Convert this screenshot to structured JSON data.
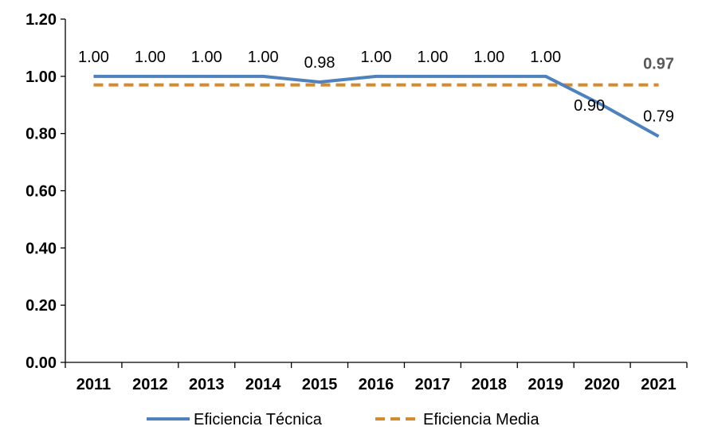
{
  "chart_data": {
    "type": "line",
    "categories": [
      "2011",
      "2012",
      "2013",
      "2014",
      "2015",
      "2016",
      "2017",
      "2018",
      "2019",
      "2020",
      "2021"
    ],
    "series": [
      {
        "name": "Eficiencia Técnica",
        "values": [
          1.0,
          1.0,
          1.0,
          1.0,
          0.98,
          1.0,
          1.0,
          1.0,
          1.0,
          0.9,
          0.79
        ],
        "labels": [
          "1.00",
          "1.00",
          "1.00",
          "1.00",
          "0.98",
          "1.00",
          "1.00",
          "1.00",
          "1.00",
          "0.90",
          "0.79"
        ],
        "color": "#4F81BD",
        "style": "solid"
      },
      {
        "name": "Eficiencia Media",
        "values": [
          0.97,
          0.97,
          0.97,
          0.97,
          0.97,
          0.97,
          0.97,
          0.97,
          0.97,
          0.97,
          0.97
        ],
        "end_label": "0.97",
        "color": "#D48A2E",
        "style": "dashed"
      }
    ],
    "yticks": [
      "0.00",
      "0.20",
      "0.40",
      "0.60",
      "0.80",
      "1.00",
      "1.20"
    ],
    "ylim": [
      0,
      1.2
    ],
    "xlabel": "",
    "ylabel": "",
    "title": "",
    "grid": false,
    "legend": "bottom"
  }
}
